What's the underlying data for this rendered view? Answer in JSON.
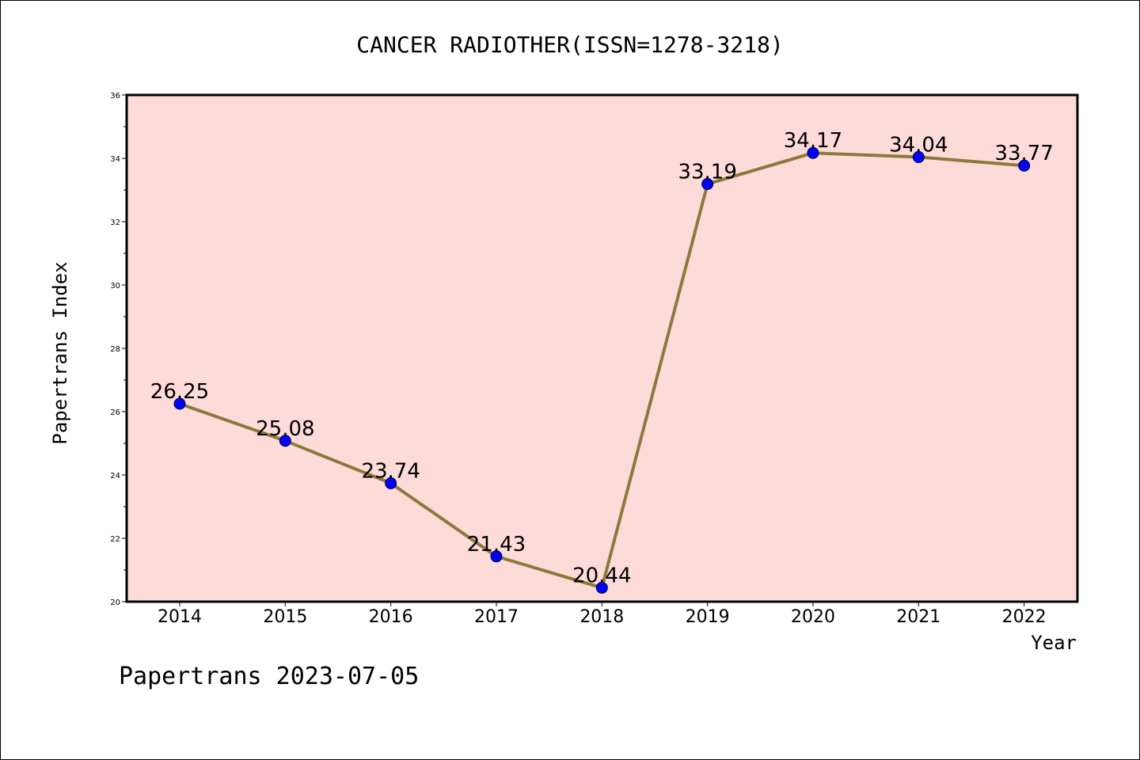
{
  "chart_data": {
    "type": "line",
    "title": "CANCER RADIOTHER(ISSN=1278-3218)",
    "xlabel": "Year",
    "ylabel": "Papertrans Index",
    "categories": [
      "2014",
      "2015",
      "2016",
      "2017",
      "2018",
      "2019",
      "2020",
      "2021",
      "2022"
    ],
    "values": [
      26.25,
      25.08,
      23.74,
      21.43,
      20.44,
      33.19,
      34.17,
      34.04,
      33.77
    ],
    "data_labels": [
      "26.25",
      "25.08",
      "23.74",
      "21.43",
      "20.44",
      "33.19",
      "34.17",
      "34.04",
      "33.77"
    ],
    "ylim": [
      20,
      36
    ],
    "yticks": [
      "20",
      "22",
      "24",
      "26",
      "28",
      "30",
      "32",
      "34",
      "36"
    ],
    "grid": false,
    "colors": {
      "plot_background": "#fddbd9",
      "line": "#8c7a3c",
      "marker": "#0000ff"
    },
    "footer": "Papertrans 2023-07-05"
  }
}
